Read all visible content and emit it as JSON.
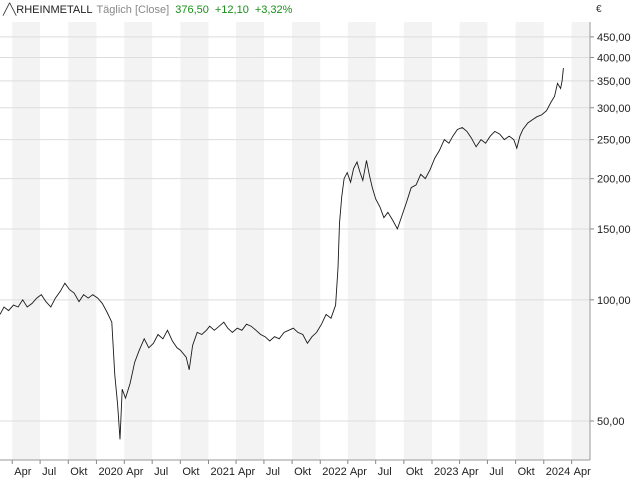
{
  "header": {
    "mark": "╱╲",
    "name": "RHEINMETALL",
    "period": "Täglich [Close]",
    "price": "376,50",
    "change": "+12,10",
    "change_pct": "+3,32%"
  },
  "currency": "€",
  "colors": {
    "line": "#1a1a1a",
    "positive": "#1a8f1a",
    "band": "#f3f3f3",
    "grid": "#dddddd"
  },
  "chart_data": {
    "type": "line",
    "title": "RHEINMETALL",
    "y_scale": "log",
    "ylim": [
      40,
      490
    ],
    "xlim": [
      "2019-02-20",
      "2024-05-31"
    ],
    "y_ticks": [
      {
        "value": 50,
        "label": "50,00"
      },
      {
        "value": 100,
        "label": "100,00"
      },
      {
        "value": 150,
        "label": "150,00"
      },
      {
        "value": 200,
        "label": "200,00"
      },
      {
        "value": 250,
        "label": "250,00"
      },
      {
        "value": 300,
        "label": "300,00"
      },
      {
        "value": 350,
        "label": "350,00"
      },
      {
        "value": 400,
        "label": "400,00"
      },
      {
        "value": 450,
        "label": "450,00"
      }
    ],
    "x_ticks": [
      {
        "date": "2019-04-01",
        "label": "Apr"
      },
      {
        "date": "2019-07-01",
        "label": "Jul"
      },
      {
        "date": "2019-10-01",
        "label": "Okt"
      },
      {
        "date": "2020-01-01",
        "label": "2020"
      },
      {
        "date": "2020-04-01",
        "label": "Apr"
      },
      {
        "date": "2020-07-01",
        "label": "Jul"
      },
      {
        "date": "2020-10-01",
        "label": "Okt"
      },
      {
        "date": "2021-01-01",
        "label": "2021"
      },
      {
        "date": "2021-04-01",
        "label": "Apr"
      },
      {
        "date": "2021-07-01",
        "label": "Jul"
      },
      {
        "date": "2021-10-01",
        "label": "Okt"
      },
      {
        "date": "2022-01-01",
        "label": "2022"
      },
      {
        "date": "2022-04-01",
        "label": "Apr"
      },
      {
        "date": "2022-07-01",
        "label": "Jul"
      },
      {
        "date": "2022-10-01",
        "label": "Okt"
      },
      {
        "date": "2023-01-01",
        "label": "2023"
      },
      {
        "date": "2023-04-01",
        "label": "Apr"
      },
      {
        "date": "2023-07-01",
        "label": "Jul"
      },
      {
        "date": "2023-10-01",
        "label": "Okt"
      },
      {
        "date": "2024-01-01",
        "label": "2024"
      },
      {
        "date": "2024-04-01",
        "label": "Apr"
      }
    ],
    "grid": true,
    "series": [
      {
        "name": "RHEINMETALL",
        "points": [
          [
            "2019-02-20",
            92
          ],
          [
            "2019-03-05",
            96
          ],
          [
            "2019-03-20",
            94
          ],
          [
            "2019-04-05",
            97
          ],
          [
            "2019-04-20",
            96
          ],
          [
            "2019-05-05",
            100
          ],
          [
            "2019-05-20",
            96
          ],
          [
            "2019-06-05",
            98
          ],
          [
            "2019-06-20",
            101
          ],
          [
            "2019-07-05",
            103
          ],
          [
            "2019-07-20",
            99
          ],
          [
            "2019-08-05",
            96
          ],
          [
            "2019-08-20",
            101
          ],
          [
            "2019-09-05",
            105
          ],
          [
            "2019-09-20",
            110
          ],
          [
            "2019-10-05",
            106
          ],
          [
            "2019-10-20",
            104
          ],
          [
            "2019-11-05",
            99
          ],
          [
            "2019-11-20",
            103
          ],
          [
            "2019-12-05",
            101
          ],
          [
            "2019-12-20",
            103
          ],
          [
            "2020-01-05",
            101
          ],
          [
            "2020-01-20",
            98
          ],
          [
            "2020-02-05",
            93
          ],
          [
            "2020-02-20",
            88
          ],
          [
            "2020-03-01",
            65
          ],
          [
            "2020-03-10",
            55
          ],
          [
            "2020-03-18",
            45
          ],
          [
            "2020-03-25",
            60
          ],
          [
            "2020-04-05",
            57
          ],
          [
            "2020-04-20",
            62
          ],
          [
            "2020-05-05",
            70
          ],
          [
            "2020-05-20",
            75
          ],
          [
            "2020-06-05",
            80
          ],
          [
            "2020-06-20",
            76
          ],
          [
            "2020-07-05",
            78
          ],
          [
            "2020-07-20",
            82
          ],
          [
            "2020-08-05",
            80
          ],
          [
            "2020-08-20",
            84
          ],
          [
            "2020-09-05",
            79
          ],
          [
            "2020-09-20",
            76
          ],
          [
            "2020-10-01",
            75
          ],
          [
            "2020-10-20",
            72
          ],
          [
            "2020-10-30",
            67
          ],
          [
            "2020-11-10",
            77
          ],
          [
            "2020-11-25",
            83
          ],
          [
            "2020-12-10",
            82
          ],
          [
            "2020-12-25",
            84
          ],
          [
            "2021-01-05",
            86
          ],
          [
            "2021-01-20",
            84
          ],
          [
            "2021-02-05",
            86
          ],
          [
            "2021-02-20",
            88
          ],
          [
            "2021-03-05",
            85
          ],
          [
            "2021-03-20",
            83
          ],
          [
            "2021-04-05",
            85
          ],
          [
            "2021-04-20",
            84
          ],
          [
            "2021-05-05",
            87
          ],
          [
            "2021-05-20",
            86
          ],
          [
            "2021-06-05",
            84
          ],
          [
            "2021-06-20",
            82
          ],
          [
            "2021-07-05",
            81
          ],
          [
            "2021-07-20",
            79
          ],
          [
            "2021-08-05",
            81
          ],
          [
            "2021-08-20",
            80
          ],
          [
            "2021-09-05",
            83
          ],
          [
            "2021-09-20",
            84
          ],
          [
            "2021-10-05",
            85
          ],
          [
            "2021-10-20",
            83
          ],
          [
            "2021-11-05",
            82
          ],
          [
            "2021-11-20",
            78
          ],
          [
            "2021-12-05",
            81
          ],
          [
            "2021-12-20",
            83
          ],
          [
            "2022-01-05",
            87
          ],
          [
            "2022-01-20",
            92
          ],
          [
            "2022-02-05",
            90
          ],
          [
            "2022-02-20",
            97
          ],
          [
            "2022-02-28",
            120
          ],
          [
            "2022-03-05",
            155
          ],
          [
            "2022-03-12",
            180
          ],
          [
            "2022-03-20",
            200
          ],
          [
            "2022-03-30",
            207
          ],
          [
            "2022-04-10",
            196
          ],
          [
            "2022-04-20",
            212
          ],
          [
            "2022-05-01",
            220
          ],
          [
            "2022-05-10",
            208
          ],
          [
            "2022-05-20",
            198
          ],
          [
            "2022-06-01",
            222
          ],
          [
            "2022-06-10",
            205
          ],
          [
            "2022-06-20",
            190
          ],
          [
            "2022-07-01",
            178
          ],
          [
            "2022-07-15",
            170
          ],
          [
            "2022-07-28",
            160
          ],
          [
            "2022-08-10",
            165
          ],
          [
            "2022-08-25",
            158
          ],
          [
            "2022-09-10",
            150
          ],
          [
            "2022-09-25",
            162
          ],
          [
            "2022-10-10",
            175
          ],
          [
            "2022-10-25",
            190
          ],
          [
            "2022-11-10",
            193
          ],
          [
            "2022-11-25",
            205
          ],
          [
            "2022-12-10",
            200
          ],
          [
            "2022-12-25",
            210
          ],
          [
            "2023-01-10",
            225
          ],
          [
            "2023-01-25",
            235
          ],
          [
            "2023-02-10",
            250
          ],
          [
            "2023-02-25",
            245
          ],
          [
            "2023-03-10",
            255
          ],
          [
            "2023-03-25",
            265
          ],
          [
            "2023-04-10",
            268
          ],
          [
            "2023-04-25",
            262
          ],
          [
            "2023-05-10",
            252
          ],
          [
            "2023-05-25",
            240
          ],
          [
            "2023-06-10",
            250
          ],
          [
            "2023-06-25",
            245
          ],
          [
            "2023-07-10",
            255
          ],
          [
            "2023-07-25",
            262
          ],
          [
            "2023-08-10",
            258
          ],
          [
            "2023-08-25",
            250
          ],
          [
            "2023-09-10",
            255
          ],
          [
            "2023-09-25",
            250
          ],
          [
            "2023-10-05",
            238
          ],
          [
            "2023-10-15",
            255
          ],
          [
            "2023-10-25",
            265
          ],
          [
            "2023-11-10",
            275
          ],
          [
            "2023-11-25",
            280
          ],
          [
            "2023-12-10",
            285
          ],
          [
            "2023-12-25",
            288
          ],
          [
            "2024-01-10",
            295
          ],
          [
            "2024-01-25",
            310
          ],
          [
            "2024-02-05",
            320
          ],
          [
            "2024-02-15",
            345
          ],
          [
            "2024-02-25",
            335
          ],
          [
            "2024-03-01",
            350
          ],
          [
            "2024-03-05",
            376.5
          ]
        ]
      }
    ]
  }
}
